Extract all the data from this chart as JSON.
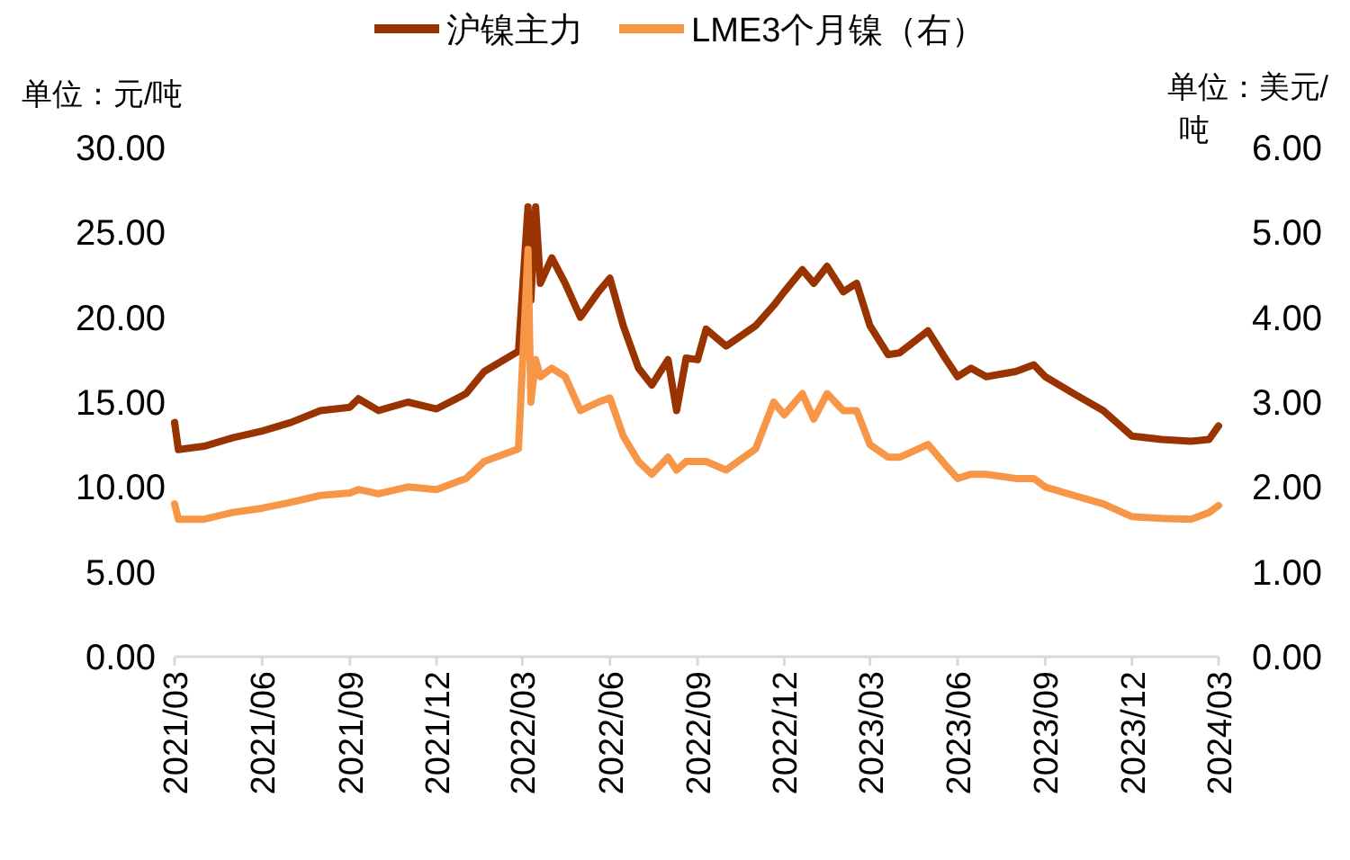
{
  "chart_data": {
    "type": "line",
    "ylabel": "单位：元/吨",
    "y2label": "单位：美元/吨",
    "legend": "top",
    "grid": false,
    "marker": "none",
    "line_style": "solid",
    "x": [
      "2021-03-01",
      "2021-03-05",
      "2021-04-01",
      "2021-05-01",
      "2021-06-01",
      "2021-07-01",
      "2021-08-01",
      "2021-09-01",
      "2021-09-10",
      "2021-10-01",
      "2021-11-01",
      "2021-12-01",
      "2022-01-01",
      "2022-01-20",
      "2022-02-01",
      "2022-02-25",
      "2022-03-07",
      "2022-03-10",
      "2022-03-15",
      "2022-03-20",
      "2022-04-01",
      "2022-04-15",
      "2022-05-01",
      "2022-05-20",
      "2022-06-01",
      "2022-06-15",
      "2022-07-01",
      "2022-07-15",
      "2022-08-01",
      "2022-08-10",
      "2022-08-20",
      "2022-09-01",
      "2022-09-10",
      "2022-10-01",
      "2022-11-01",
      "2022-11-20",
      "2022-12-01",
      "2022-12-20",
      "2023-01-01",
      "2023-01-15",
      "2023-02-01",
      "2023-02-15",
      "2023-03-01",
      "2023-03-20",
      "2023-04-01",
      "2023-05-01",
      "2023-05-20",
      "2023-06-01",
      "2023-06-15",
      "2023-07-01",
      "2023-08-01",
      "2023-08-20",
      "2023-09-01",
      "2023-10-01",
      "2023-11-01",
      "2023-12-01",
      "2024-01-01",
      "2024-02-01",
      "2024-02-20",
      "2024-03-01"
    ],
    "xlim": [
      "2021-03-01",
      "2024-03-01"
    ],
    "xticks": [
      {
        "value": "2021-03",
        "label": "2021/03"
      },
      {
        "value": "2021-06",
        "label": "2021/06"
      },
      {
        "value": "2021-09",
        "label": "2021/09"
      },
      {
        "value": "2021-12",
        "label": "2021/12"
      },
      {
        "value": "2022-03",
        "label": "2022/03"
      },
      {
        "value": "2022-06",
        "label": "2022/06"
      },
      {
        "value": "2022-09",
        "label": "2022/09"
      },
      {
        "value": "2022-12",
        "label": "2022/12"
      },
      {
        "value": "2023-03",
        "label": "2023/03"
      },
      {
        "value": "2023-06",
        "label": "2023/06"
      },
      {
        "value": "2023-09",
        "label": "2023/09"
      },
      {
        "value": "2023-12",
        "label": "2023/12"
      },
      {
        "value": "2024-03",
        "label": "2024/03"
      }
    ],
    "ylim": [
      0,
      30
    ],
    "yticks": [
      {
        "value": 0,
        "label": "0.00"
      },
      {
        "value": 5,
        "label": "5.00"
      },
      {
        "value": 10,
        "label": "10.00"
      },
      {
        "value": 15,
        "label": "15.00"
      },
      {
        "value": 20,
        "label": "20.00"
      },
      {
        "value": 25,
        "label": "25.00"
      },
      {
        "value": 30,
        "label": "30.00"
      }
    ],
    "y2lim": [
      0,
      6
    ],
    "y2ticks": [
      {
        "value": 0,
        "label": "0.00"
      },
      {
        "value": 1,
        "label": "1.00"
      },
      {
        "value": 2,
        "label": "2.00"
      },
      {
        "value": 3,
        "label": "3.00"
      },
      {
        "value": 4,
        "label": "4.00"
      },
      {
        "value": 5,
        "label": "5.00"
      },
      {
        "value": 6,
        "label": "6.00"
      }
    ],
    "series": [
      {
        "name": "沪镍主力",
        "color": "#993300",
        "values": [
          13.8,
          12.2,
          12.4,
          12.9,
          13.3,
          13.8,
          14.5,
          14.7,
          15.2,
          14.5,
          15.0,
          14.6,
          15.5,
          16.8,
          17.2,
          18.0,
          26.5,
          21.0,
          26.5,
          22.0,
          23.5,
          22.0,
          20.0,
          21.5,
          22.3,
          19.5,
          17.0,
          16.0,
          17.5,
          14.5,
          17.6,
          17.5,
          19.3,
          18.3,
          19.5,
          20.7,
          21.5,
          22.8,
          22.0,
          23.0,
          21.5,
          22.0,
          19.5,
          17.8,
          17.9,
          19.2,
          17.5,
          16.5,
          17.0,
          16.5,
          16.8,
          17.2,
          16.5,
          15.5,
          14.5,
          13.0,
          12.8,
          12.7,
          12.8,
          13.6
        ]
      },
      {
        "name": "LME3个月镍（右）",
        "color": "#f79646",
        "axis": "y2",
        "values": [
          1.8,
          1.62,
          1.62,
          1.7,
          1.75,
          1.82,
          1.9,
          1.93,
          1.97,
          1.92,
          2.0,
          1.97,
          2.1,
          2.3,
          2.35,
          2.45,
          4.8,
          3.0,
          3.5,
          3.3,
          3.4,
          3.3,
          2.9,
          3.0,
          3.05,
          2.6,
          2.3,
          2.15,
          2.35,
          2.2,
          2.3,
          2.3,
          2.3,
          2.2,
          2.45,
          3.0,
          2.85,
          3.1,
          2.8,
          3.1,
          2.9,
          2.9,
          2.5,
          2.35,
          2.35,
          2.5,
          2.25,
          2.1,
          2.15,
          2.15,
          2.1,
          2.1,
          2.0,
          1.9,
          1.8,
          1.65,
          1.63,
          1.62,
          1.7,
          1.78
        ]
      }
    ]
  }
}
